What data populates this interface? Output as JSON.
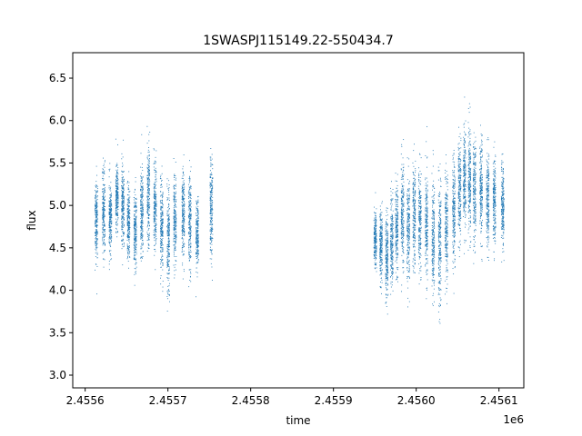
{
  "chart_data": {
    "type": "scatter",
    "title": "1SWASPJ115149.22-550434.7",
    "xlabel": "time",
    "ylabel": "flux",
    "x_offset_label": "1e6",
    "xlim": [
      2455585,
      2456130
    ],
    "ylim": [
      2.85,
      6.8
    ],
    "x_ticks": [
      2455600,
      2455700,
      2455800,
      2455900,
      2456000,
      2456100
    ],
    "x_tick_labels": [
      "2.4556",
      "2.4557",
      "2.4558",
      "2.4559",
      "2.4560",
      "2.4561"
    ],
    "y_ticks": [
      3.0,
      3.5,
      4.0,
      4.5,
      5.0,
      5.5,
      6.0,
      6.5
    ],
    "y_tick_labels": [
      "3.0",
      "3.5",
      "4.0",
      "4.5",
      "5.0",
      "5.5",
      "6.0",
      "6.5"
    ],
    "grid": false,
    "legend": "none",
    "marker_color": "#1f77b4",
    "series": [
      {
        "values_summary": "approximate per-night flux distributions (time, mean, spread, min, max)",
        "nights": [
          [
            2455613,
            4.85,
            0.22,
            4.25,
            5.35
          ],
          [
            2455622,
            4.95,
            0.25,
            4.35,
            5.9
          ],
          [
            2455630,
            4.85,
            0.2,
            4.3,
            5.6
          ],
          [
            2455638,
            5.1,
            0.2,
            4.6,
            5.6
          ],
          [
            2455645,
            5.0,
            0.25,
            4.5,
            5.8
          ],
          [
            2455652,
            4.8,
            0.2,
            4.3,
            5.5
          ],
          [
            2455660,
            4.7,
            0.22,
            4.2,
            5.3
          ],
          [
            2455668,
            4.9,
            0.25,
            4.3,
            5.6
          ],
          [
            2455676,
            5.1,
            0.3,
            4.3,
            6.0
          ],
          [
            2455684,
            5.0,
            0.25,
            4.4,
            5.7
          ],
          [
            2455692,
            4.75,
            0.25,
            4.1,
            5.4
          ],
          [
            2455700,
            4.6,
            0.3,
            3.8,
            5.5
          ],
          [
            2455708,
            4.85,
            0.25,
            4.2,
            5.4
          ],
          [
            2455718,
            4.9,
            0.25,
            4.3,
            5.6
          ],
          [
            2455726,
            4.8,
            0.3,
            4.1,
            5.6
          ],
          [
            2455735,
            4.65,
            0.2,
            4.2,
            5.1
          ],
          [
            2455752,
            4.95,
            0.3,
            4.1,
            5.8
          ],
          [
            2455950,
            4.6,
            0.15,
            4.2,
            5.2
          ],
          [
            2455957,
            4.55,
            0.2,
            4.1,
            5.0
          ],
          [
            2455964,
            4.4,
            0.22,
            3.9,
            5.0
          ],
          [
            2455970,
            4.6,
            0.25,
            4.0,
            5.3
          ],
          [
            2455976,
            4.75,
            0.25,
            4.1,
            5.4
          ],
          [
            2455983,
            4.9,
            0.3,
            4.1,
            5.7
          ],
          [
            2455990,
            4.75,
            0.3,
            4.0,
            5.6
          ],
          [
            2455997,
            4.9,
            0.3,
            4.1,
            5.7
          ],
          [
            2456004,
            4.85,
            0.3,
            4.1,
            5.7
          ],
          [
            2456012,
            4.8,
            0.3,
            4.0,
            5.6
          ],
          [
            2456020,
            4.6,
            0.3,
            3.8,
            5.4
          ],
          [
            2456028,
            4.55,
            0.35,
            3.6,
            5.5
          ],
          [
            2456036,
            4.75,
            0.3,
            4.0,
            5.5
          ],
          [
            2456045,
            4.95,
            0.3,
            4.2,
            5.7
          ],
          [
            2456052,
            5.2,
            0.3,
            4.4,
            6.0
          ],
          [
            2456058,
            5.3,
            0.3,
            4.5,
            6.1
          ],
          [
            2456064,
            5.3,
            0.3,
            4.5,
            6.0
          ],
          [
            2456070,
            5.2,
            0.3,
            4.4,
            5.9
          ],
          [
            2456078,
            5.15,
            0.3,
            4.4,
            5.9
          ],
          [
            2456086,
            5.1,
            0.25,
            4.5,
            5.6
          ],
          [
            2456094,
            5.05,
            0.25,
            4.5,
            5.6
          ],
          [
            2456104,
            5.0,
            0.25,
            4.5,
            5.5
          ]
        ]
      }
    ]
  }
}
